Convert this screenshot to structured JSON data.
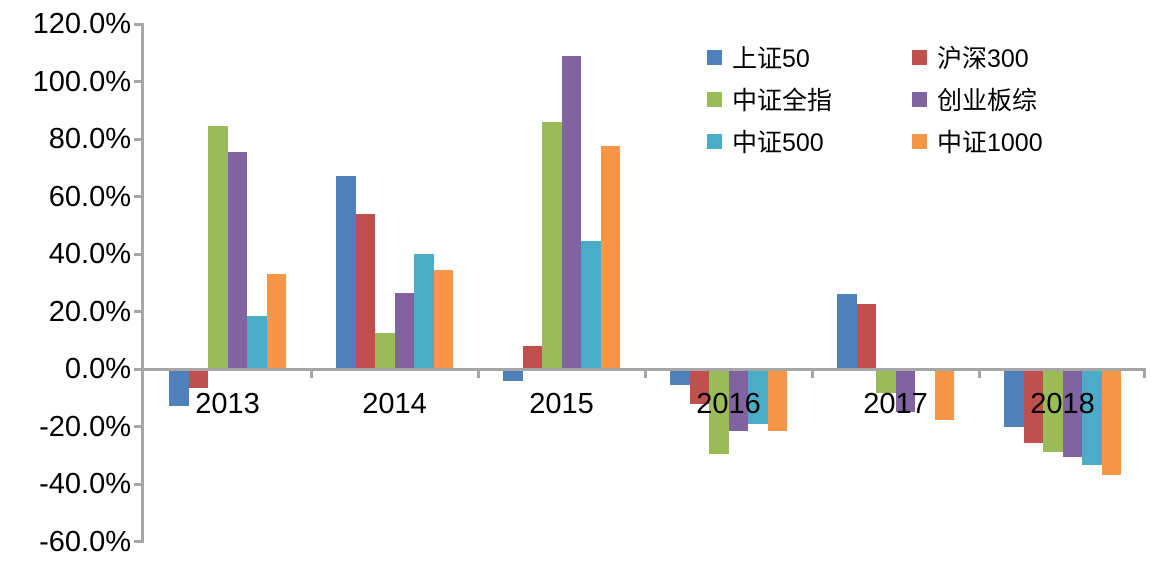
{
  "chart_data": {
    "type": "bar",
    "title": "",
    "xlabel": "",
    "ylabel": "",
    "categories": [
      "2013",
      "2014",
      "2015",
      "2016",
      "2017",
      "2018"
    ],
    "series": [
      {
        "name": "上证50",
        "color": "#4f81bd",
        "values": [
          -13.0,
          67.0,
          -4.0,
          -5.5,
          26.0,
          -20.0
        ]
      },
      {
        "name": "沪深300",
        "color": "#c0504d",
        "values": [
          -6.5,
          54.0,
          8.0,
          -12.0,
          22.5,
          -25.9
        ]
      },
      {
        "name": "中证全指",
        "color": "#9bbb59",
        "values": [
          84.5,
          12.5,
          86.0,
          -29.5,
          -8.5,
          -28.7
        ]
      },
      {
        "name": "创业板综",
        "color": "#8064a2",
        "values": [
          75.5,
          26.5,
          108.8,
          -21.5,
          -15.0,
          -30.6
        ]
      },
      {
        "name": "中证500",
        "color": "#4bacc6",
        "values": [
          18.5,
          40.0,
          44.5,
          -19.0,
          0.0,
          -33.3
        ]
      },
      {
        "name": "中证1000",
        "color": "#f79646",
        "values": [
          33.0,
          34.5,
          77.5,
          -21.5,
          -17.7,
          -36.8
        ]
      }
    ],
    "ylim": [
      -60,
      120
    ],
    "y_tick_step": 20,
    "y_tick_values": [
      120,
      100,
      80,
      60,
      40,
      20,
      0,
      -20,
      -40,
      -60
    ],
    "y_tick_labels": [
      "120.0%",
      "100.0%",
      "80.0%",
      "60.0%",
      "40.0%",
      "20.0%",
      "0.0%",
      "-20.0%",
      "-40.0%",
      "-60.0%"
    ],
    "unit": "percent",
    "grid": false,
    "legend_position": "top-right",
    "legend_columns": 2,
    "axis_color": "#a6a6a6",
    "text_color": "#000000"
  }
}
